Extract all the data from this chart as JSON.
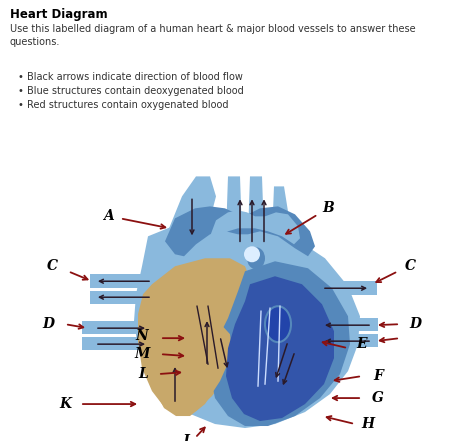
{
  "title": "Heart Diagram",
  "subtitle": "Use this labelled diagram of a human heart & major blood vessels to answer these\nquestions.",
  "bullets": [
    "Black arrows indicate direction of blood flow",
    "Blue structures contain deoxygenated blood",
    "Red structures contain oxygenated blood"
  ],
  "bg_color": "#ffffff",
  "light_blue": "#8ab9dd",
  "mid_blue": "#5588bb",
  "dark_blue": "#3355aa",
  "very_dark_blue": "#2244aa",
  "tan": "#c8a86a",
  "arrow_color": "#8B1010",
  "black_arrow": "#2a1a2a"
}
